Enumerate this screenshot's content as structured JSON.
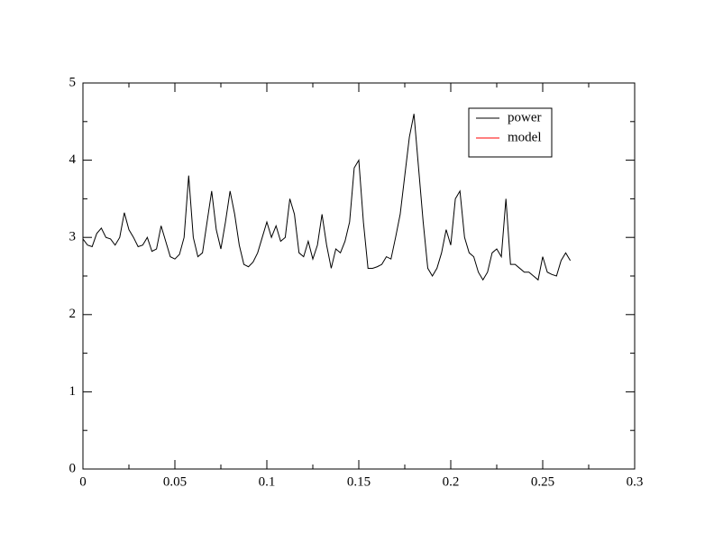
{
  "chart_data": {
    "type": "line",
    "series": [
      {
        "name": "power",
        "color": "#000000",
        "x": [
          0,
          0.0025,
          0.005,
          0.0075,
          0.01,
          0.0125,
          0.015,
          0.0175,
          0.02,
          0.0225,
          0.025,
          0.0275,
          0.03,
          0.0325,
          0.035,
          0.0375,
          0.04,
          0.0425,
          0.045,
          0.0475,
          0.05,
          0.0525,
          0.055,
          0.0575,
          0.06,
          0.0625,
          0.065,
          0.0675,
          0.07,
          0.0725,
          0.075,
          0.0775,
          0.08,
          0.0825,
          0.085,
          0.0875,
          0.09,
          0.0925,
          0.095,
          0.0975,
          0.1,
          0.1025,
          0.105,
          0.1075,
          0.11,
          0.1125,
          0.115,
          0.1175,
          0.12,
          0.1225,
          0.125,
          0.1275,
          0.13,
          0.1325,
          0.135,
          0.1375,
          0.14,
          0.1425,
          0.145,
          0.1475,
          0.15,
          0.1525,
          0.155,
          0.1575,
          0.16,
          0.1625,
          0.165,
          0.1675,
          0.17,
          0.1725,
          0.175,
          0.1775,
          0.18,
          0.1825,
          0.185,
          0.1875,
          0.19,
          0.1925,
          0.195,
          0.1975,
          0.2,
          0.2025,
          0.205,
          0.2075,
          0.21,
          0.2125,
          0.215,
          0.2175,
          0.22,
          0.2225,
          0.225,
          0.2275,
          0.23,
          0.2325,
          0.235,
          0.2375,
          0.24,
          0.2425,
          0.245,
          0.2475,
          0.25,
          0.2525,
          0.255,
          0.2575,
          0.26,
          0.2625,
          0.265
        ],
        "values": [
          2.98,
          2.9,
          2.88,
          3.05,
          3.12,
          3.0,
          2.98,
          2.9,
          3.0,
          3.32,
          3.1,
          3.0,
          2.88,
          2.9,
          3.0,
          2.82,
          2.85,
          3.15,
          2.95,
          2.75,
          2.72,
          2.78,
          3.0,
          3.8,
          3.0,
          2.75,
          2.8,
          3.2,
          3.6,
          3.1,
          2.85,
          3.2,
          3.6,
          3.3,
          2.9,
          2.65,
          2.62,
          2.68,
          2.8,
          3.0,
          3.2,
          3.0,
          3.15,
          2.95,
          3.0,
          3.5,
          3.3,
          2.8,
          2.75,
          2.95,
          2.72,
          2.9,
          3.3,
          2.9,
          2.6,
          2.85,
          2.8,
          2.95,
          3.2,
          3.9,
          4.0,
          3.2,
          2.6,
          2.6,
          2.62,
          2.65,
          2.75,
          2.72,
          3.0,
          3.3,
          3.8,
          4.3,
          4.6,
          3.9,
          3.2,
          2.6,
          2.5,
          2.6,
          2.8,
          3.1,
          2.9,
          3.5,
          3.6,
          3.0,
          2.8,
          2.75,
          2.55,
          2.45,
          2.55,
          2.8,
          2.85,
          2.75,
          3.5,
          2.65,
          2.65,
          2.6,
          2.55,
          2.55,
          2.5,
          2.45,
          2.75,
          2.55,
          2.52,
          2.5,
          2.7,
          2.8,
          2.7
        ]
      },
      {
        "name": "model",
        "color": "#ff0000",
        "x": [],
        "values": []
      }
    ],
    "xlim": [
      0,
      0.3
    ],
    "xticks": [
      0,
      0.05,
      0.1,
      0.15,
      0.2,
      0.25,
      0.3
    ],
    "xminorticks": [
      0.025,
      0.075,
      0.125,
      0.175,
      0.225,
      0.275
    ],
    "ylim": [
      0,
      5
    ],
    "yticks": [
      0,
      1,
      2,
      3,
      4,
      5
    ],
    "yminorticks": [
      0.5,
      1.5,
      2.5,
      3.5,
      4.5
    ],
    "legend": "upper right"
  }
}
